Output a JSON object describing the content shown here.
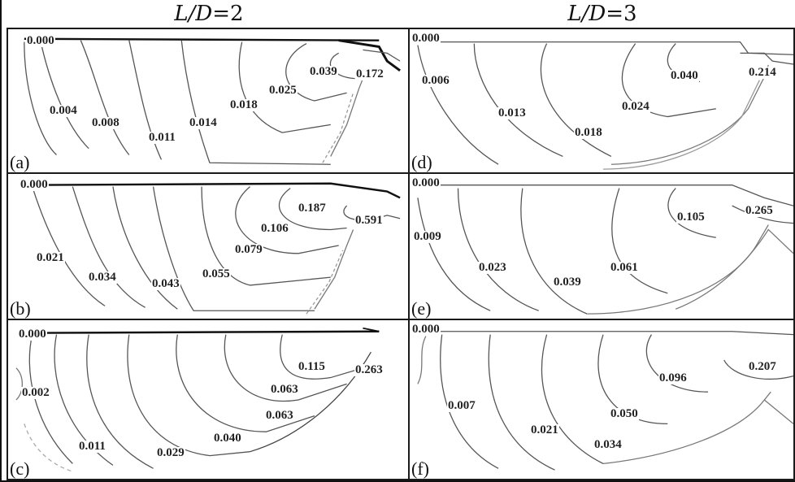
{
  "figure": {
    "columns": [
      {
        "prefix": "L/D",
        "value": "=2"
      },
      {
        "prefix": "L/D",
        "value": "=3"
      }
    ],
    "panels": [
      {
        "letter": "(a)",
        "labels": [
          "0.000",
          "0.039",
          "0.172",
          "0.025",
          "0.018",
          "0.004",
          "0.008",
          "0.014",
          "0.011"
        ]
      },
      {
        "letter": "(b)",
        "labels": [
          "0.000",
          "0.187",
          "0.591",
          "0.106",
          "0.079",
          "0.021",
          "0.034",
          "0.055",
          "0.043"
        ]
      },
      {
        "letter": "(c)",
        "labels": [
          "0.000",
          "0.115",
          "0.263",
          "0.063",
          "0.063",
          "0.002",
          "0.040",
          "0.011",
          "0.029"
        ]
      },
      {
        "letter": "(d)",
        "labels": [
          "0.000",
          "0.040",
          "0.214",
          "0.006",
          "0.024",
          "0.013",
          "0.018"
        ]
      },
      {
        "letter": "(e)",
        "labels": [
          "0.000",
          "0.105",
          "0.265",
          "0.009",
          "0.023",
          "0.061",
          "0.039"
        ]
      },
      {
        "letter": "(f)",
        "labels": [
          "0.000",
          "0.207",
          "0.096",
          "0.007",
          "0.050",
          "0.021",
          "0.034"
        ]
      }
    ]
  }
}
